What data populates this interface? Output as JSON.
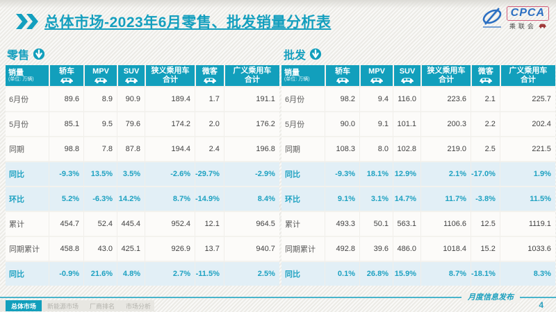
{
  "header": {
    "title": "总体市场-2023年6月零售、批发销量分析表",
    "logo": {
      "acronym": "CPCA",
      "name": "乘联会"
    }
  },
  "columns": {
    "first": {
      "title": "销量",
      "unit": "(单位: 万辆)"
    },
    "cols": [
      {
        "label": "轿车",
        "icon": true
      },
      {
        "label": "MPV",
        "icon": true
      },
      {
        "label": "SUV",
        "icon": true
      },
      {
        "label": "狭义乘用车",
        "sub": "合计"
      },
      {
        "label": "微客",
        "icon": true
      },
      {
        "label": "广义乘用车",
        "sub": "合计"
      }
    ]
  },
  "tables": [
    {
      "section": "零售",
      "rows": [
        {
          "label": "6月份",
          "values": [
            "89.6",
            "8.9",
            "90.9",
            "189.4",
            "1.7",
            "191.1"
          ],
          "highlight": false
        },
        {
          "label": "5月份",
          "values": [
            "85.1",
            "9.5",
            "79.6",
            "174.2",
            "2.0",
            "176.2"
          ],
          "highlight": false
        },
        {
          "label": "同期",
          "values": [
            "98.8",
            "7.8",
            "87.8",
            "194.4",
            "2.4",
            "196.8"
          ],
          "highlight": false
        },
        {
          "label": "同比",
          "values": [
            "-9.3%",
            "13.5%",
            "3.5%",
            "-2.6%",
            "-29.7%",
            "-2.9%"
          ],
          "highlight": true
        },
        {
          "label": "环比",
          "values": [
            "5.2%",
            "-6.3%",
            "14.2%",
            "8.7%",
            "-14.9%",
            "8.4%"
          ],
          "highlight": true
        },
        {
          "label": "累计",
          "values": [
            "454.7",
            "52.4",
            "445.4",
            "952.4",
            "12.1",
            "964.5"
          ],
          "highlight": false
        },
        {
          "label": "同期累计",
          "values": [
            "458.8",
            "43.0",
            "425.1",
            "926.9",
            "13.7",
            "940.7"
          ],
          "highlight": false
        },
        {
          "label": "同比",
          "values": [
            "-0.9%",
            "21.6%",
            "4.8%",
            "2.7%",
            "-11.5%",
            "2.5%"
          ],
          "highlight": true
        }
      ]
    },
    {
      "section": "批发",
      "rows": [
        {
          "label": "6月份",
          "values": [
            "98.2",
            "9.4",
            "116.0",
            "223.6",
            "2.1",
            "225.7"
          ],
          "highlight": false
        },
        {
          "label": "5月份",
          "values": [
            "90.0",
            "9.1",
            "101.1",
            "200.3",
            "2.2",
            "202.4"
          ],
          "highlight": false
        },
        {
          "label": "同期",
          "values": [
            "108.3",
            "8.0",
            "102.8",
            "219.0",
            "2.5",
            "221.5"
          ],
          "highlight": false
        },
        {
          "label": "同比",
          "values": [
            "-9.3%",
            "18.1%",
            "12.9%",
            "2.1%",
            "-17.0%",
            "1.9%"
          ],
          "highlight": true
        },
        {
          "label": "环比",
          "values": [
            "9.1%",
            "3.1%",
            "14.7%",
            "11.7%",
            "-3.8%",
            "11.5%"
          ],
          "highlight": true
        },
        {
          "label": "累计",
          "values": [
            "493.3",
            "50.1",
            "563.1",
            "1106.6",
            "12.5",
            "1119.1"
          ],
          "highlight": false
        },
        {
          "label": "同期累计",
          "values": [
            "492.8",
            "39.6",
            "486.0",
            "1018.4",
            "15.2",
            "1033.6"
          ],
          "highlight": false
        },
        {
          "label": "同比",
          "values": [
            "0.1%",
            "26.8%",
            "15.9%",
            "8.7%",
            "-18.1%",
            "8.3%"
          ],
          "highlight": true
        }
      ]
    }
  ],
  "footer": {
    "tabs": [
      {
        "label": "总体市场",
        "active": true
      },
      {
        "label": "新能源市场",
        "active": false
      },
      {
        "label": "厂商排名",
        "active": false
      },
      {
        "label": "市场分析",
        "active": false
      }
    ],
    "release_note": "月度信息发布",
    "page_number": "4"
  },
  "watermark": "CPCA 乘联会",
  "colors": {
    "accent": "#129fbc",
    "highlight_row_bg": "#e2eff6",
    "logo_blue": "#2b6fc2"
  }
}
